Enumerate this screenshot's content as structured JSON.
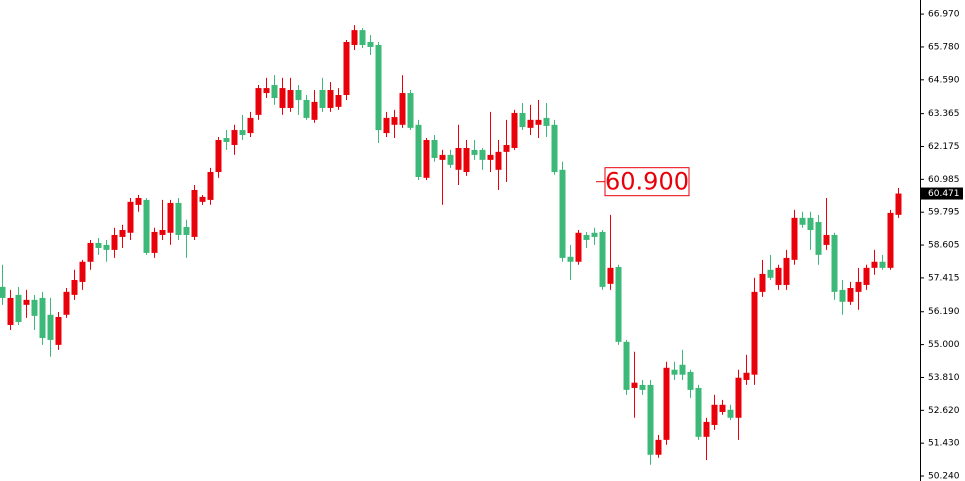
{
  "chart_data": {
    "type": "candlestick",
    "up_color": "#e8000b",
    "down_color": "#3cb878",
    "ylim": [
      50.06,
      67.48
    ],
    "yticks": [
      {
        "value": 66.97,
        "label": "66.970"
      },
      {
        "value": 65.78,
        "label": "65.780"
      },
      {
        "value": 64.59,
        "label": "64.590"
      },
      63.365,
      62.175,
      60.985,
      59.795,
      58.605,
      57.415,
      {
        "value": 56.19,
        "label": "56.190"
      },
      {
        "value": 55,
        "label": "55.000"
      },
      {
        "value": 53.81,
        "label": "53.810"
      },
      {
        "value": 52.62,
        "label": "52.620"
      },
      {
        "value": 51.43,
        "label": "51.430"
      },
      {
        "value": 50.24,
        "label": "50.240"
      }
    ],
    "annotation": {
      "value": 60.9,
      "label": "60.900"
    },
    "open": [
      57.09,
      55.71,
      56.8,
      56.44,
      56.62,
      56.69,
      56.08,
      54.99,
      56.08,
      56.8,
      57.27,
      58.0,
      58.68,
      58.61,
      58.43,
      58.9,
      59.05,
      60.06,
      60.24,
      58.32,
      58.97,
      59.05,
      60.13,
      59.26,
      58.9,
      60.17,
      60.24,
      61.25,
      62.48,
      62.23,
      62.77,
      62.66,
      63.32,
      64.11,
      64.4,
      63.57,
      63.57,
      64.22,
      63.86,
      63.14,
      64.22,
      63.57,
      63.61,
      64.04,
      65.85,
      66.39,
      65.96,
      65.85,
      62.66,
      62.96,
      62.96,
      64.11,
      62.96,
      61.04,
      62.41,
      61.69,
      61.87,
      61.33,
      61.25,
      62.05,
      62.05,
      61.69,
      61.33,
      61.98,
      62.12,
      63.39,
      62.85,
      62.96,
      63.21,
      62.96,
      61.33,
      58.18,
      58.0,
      58.97,
      59.05,
      59.08,
      57.2,
      57.81,
      55.1,
      53.43,
      53.54,
      53.54,
      51.01,
      51.55,
      54.09,
      54.27,
      54.01,
      53.43,
      51.66,
      52.09,
      52.56,
      52.64,
      52.35,
      53.72,
      53.91,
      56.91,
      57.71,
      57.16,
      57.16,
      58.07,
      59.59,
      59.59,
      59.44,
      58.61,
      58.97,
      56.98,
      56.55,
      56.91,
      57.16,
      57.78,
      58.0,
      57.78,
      59.7
    ],
    "high": [
      57.89,
      56.98,
      57.09,
      56.98,
      56.8,
      56.91,
      56.69,
      56.18,
      57.05,
      57.71,
      58.07,
      58.79,
      58.86,
      58.79,
      59.23,
      59.34,
      60.31,
      60.42,
      60.31,
      59.23,
      60.24,
      60.24,
      60.31,
      59.52,
      60.78,
      60.42,
      61.4,
      62.52,
      62.77,
      62.96,
      63.32,
      63.43,
      64.4,
      64.66,
      64.76,
      64.66,
      64.66,
      64.4,
      64.04,
      64.22,
      64.66,
      64.51,
      64.29,
      66.03,
      66.57,
      66.46,
      66.21,
      65.96,
      63.43,
      63.5,
      64.76,
      64.22,
      63.14,
      62.48,
      62.59,
      62.05,
      62.05,
      62.96,
      62.41,
      62.41,
      62.12,
      63.43,
      62.41,
      63.14,
      63.5,
      63.75,
      63.68,
      63.86,
      63.75,
      63.14,
      61.62,
      58.61,
      59.15,
      59.08,
      59.23,
      59.15,
      59.7,
      57.89,
      55.17,
      54.74,
      53.72,
      53.72,
      51.73,
      54.38,
      54.38,
      54.81,
      54.09,
      53.54,
      52.35,
      53.18,
      53.0,
      52.82,
      54.09,
      54.63,
      57.42,
      58.07,
      58.25,
      57.89,
      58.43,
      59.88,
      59.81,
      59.81,
      59.7,
      60.31,
      59.05,
      57.34,
      57.27,
      57.78,
      57.89,
      58.43,
      58.25,
      59.88,
      60.67
    ],
    "low": [
      56.44,
      55.53,
      55.71,
      55.97,
      55.53,
      54.99,
      54.56,
      54.81,
      55.97,
      56.62,
      56.98,
      57.71,
      58.25,
      58.0,
      58.14,
      58.5,
      58.79,
      59.81,
      58.25,
      58.14,
      58.79,
      58.61,
      58.79,
      58.14,
      58.79,
      60.06,
      60.06,
      61.04,
      62.05,
      61.87,
      62.41,
      62.52,
      63.14,
      63.93,
      63.68,
      63.32,
      63.43,
      63.32,
      63.14,
      63.03,
      63.43,
      63.43,
      63.5,
      63.86,
      65.67,
      65.74,
      65.49,
      62.3,
      62.52,
      62.48,
      62.85,
      62.77,
      60.96,
      60.96,
      61.62,
      60.06,
      61.4,
      60.78,
      61.11,
      61.69,
      61.33,
      61.25,
      60.6,
      60.89,
      62.05,
      62.77,
      62.59,
      62.48,
      62.52,
      61.15,
      58.0,
      57.34,
      57.89,
      58.5,
      58.61,
      56.98,
      56.98,
      54.99,
      53.18,
      52.35,
      53.18,
      50.65,
      50.9,
      51.37,
      53.72,
      53.72,
      53.07,
      51.55,
      50.82,
      51.91,
      52.46,
      52.27,
      51.55,
      53.54,
      53.54,
      56.73,
      57.34,
      56.98,
      56.98,
      57.89,
      59.23,
      58.43,
      57.89,
      58.43,
      56.62,
      56.08,
      56.44,
      56.26,
      56.98,
      57.53,
      57.71,
      57.71,
      59.59
    ],
    "close": [
      56.69,
      56.69,
      55.82,
      56.62,
      56.04,
      55.24,
      55.17,
      56.0,
      56.91,
      57.34,
      58.0,
      58.68,
      58.5,
      58.43,
      58.97,
      59.15,
      60.17,
      60.31,
      58.32,
      59.08,
      59.15,
      60.13,
      58.97,
      58.97,
      60.6,
      60.35,
      61.25,
      62.41,
      62.34,
      62.77,
      62.59,
      63.21,
      64.29,
      64.29,
      63.93,
      64.29,
      64.22,
      63.86,
      63.21,
      63.79,
      63.57,
      64.22,
      64.04,
      65.96,
      66.39,
      65.85,
      65.78,
      62.77,
      63.21,
      63.24,
      64.11,
      62.85,
      61.07,
      62.41,
      61.76,
      61.87,
      61.51,
      62.12,
      62.12,
      61.87,
      61.69,
      61.87,
      61.98,
      62.23,
      63.39,
      62.88,
      63.14,
      63.14,
      62.92,
      61.25,
      58.14,
      58.0,
      59.05,
      58.79,
      58.9,
      57.09,
      57.78,
      55.1,
      53.36,
      53.62,
      53.36,
      51.01,
      51.55,
      54.16,
      53.91,
      53.91,
      53.36,
      51.66,
      52.2,
      52.82,
      52.82,
      52.35,
      53.8,
      53.98,
      56.91,
      57.56,
      57.42,
      57.78,
      58.14,
      59.59,
      59.34,
      59.15,
      58.25,
      58.97,
      56.91,
      56.55,
      57.05,
      57.27,
      57.78,
      58.0,
      57.78,
      59.77,
      60.471
    ]
  }
}
